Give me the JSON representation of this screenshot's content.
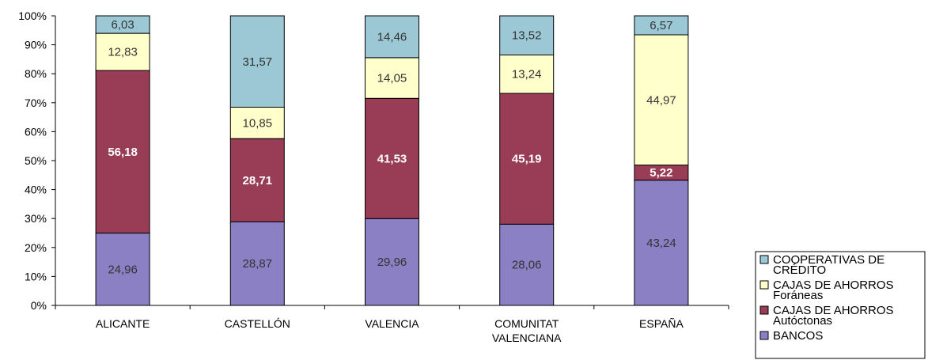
{
  "chart_data": {
    "type": "bar",
    "stacked": true,
    "percent": true,
    "categories": [
      "ALICANTE",
      "CASTELLÓN",
      "VALENCIA",
      "COMUNITAT VALENCIANA",
      "ESPAÑA"
    ],
    "category_lines": [
      [
        "ALICANTE"
      ],
      [
        "CASTELLÓN"
      ],
      [
        "VALENCIA"
      ],
      [
        "COMUNITAT",
        "VALENCIANA"
      ],
      [
        "ESPAÑA"
      ]
    ],
    "series": [
      {
        "name": "BANCOS",
        "color": "#8B80C4",
        "label_color": "#333333",
        "label_bold": false,
        "values": [
          24.96,
          28.87,
          29.96,
          28.06,
          43.24
        ],
        "labels": [
          "24,96",
          "28,87",
          "29,96",
          "28,06",
          "43,24"
        ]
      },
      {
        "name": "CAJAS DE AHORROS Autóctonas",
        "color": "#993D57",
        "label_color": "#ffffff",
        "label_bold": true,
        "values": [
          56.18,
          28.71,
          41.53,
          45.19,
          5.22
        ],
        "labels": [
          "56,18",
          "28,71",
          "41,53",
          "45,19",
          "5,22"
        ]
      },
      {
        "name": "CAJAS DE AHORROS Foráneas",
        "color": "#FFFFCC",
        "label_color": "#333333",
        "label_bold": false,
        "values": [
          12.83,
          10.85,
          14.05,
          13.24,
          44.97
        ],
        "labels": [
          "12,83",
          "10,85",
          "14,05",
          "13,24",
          "44,97"
        ]
      },
      {
        "name": "COOPERATIVAS DE CRÉDITO",
        "color": "#9CC8D6",
        "label_color": "#333333",
        "label_bold": false,
        "values": [
          6.03,
          31.57,
          14.46,
          13.52,
          6.57
        ],
        "labels": [
          "6,03",
          "31,57",
          "14,46",
          "13,52",
          "6,57"
        ]
      }
    ],
    "yticks": [
      "0%",
      "10%",
      "20%",
      "30%",
      "40%",
      "50%",
      "60%",
      "70%",
      "80%",
      "90%",
      "100%"
    ],
    "ylim": [
      0,
      100
    ],
    "legend": [
      {
        "lines": [
          "COOPERATIVAS DE",
          "CRÉDITO"
        ],
        "color": "#9CC8D6"
      },
      {
        "lines": [
          "CAJAS DE AHORROS",
          "Foráneas"
        ],
        "color": "#FFFFCC"
      },
      {
        "lines": [
          "CAJAS DE AHORROS",
          "Autóctonas"
        ],
        "color": "#993D57"
      },
      {
        "lines": [
          "BANCOS"
        ],
        "color": "#8B80C4"
      }
    ],
    "legend_position": "right",
    "grid": false
  }
}
